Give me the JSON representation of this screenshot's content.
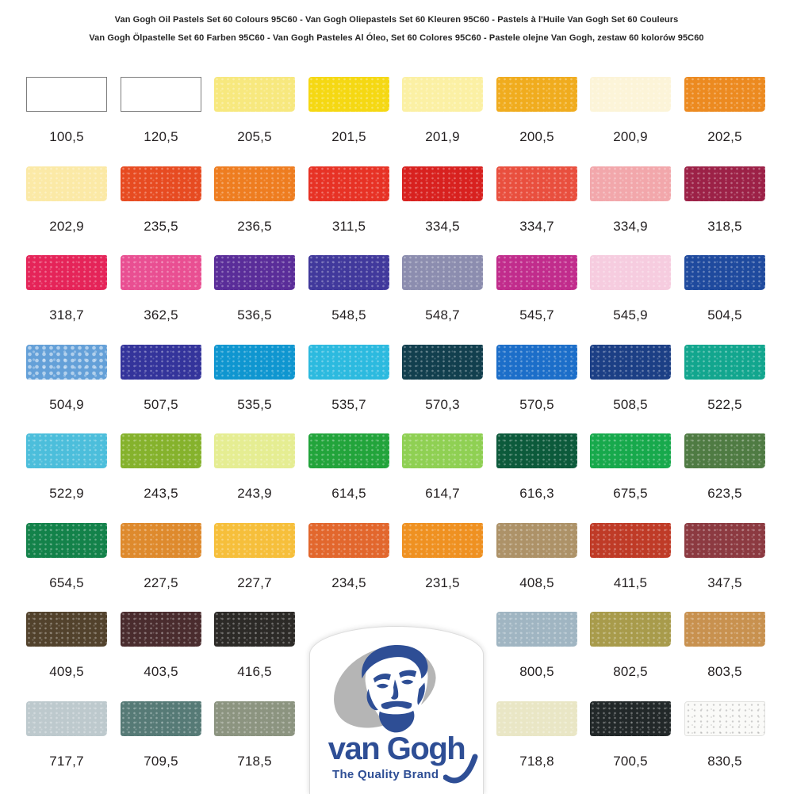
{
  "header": {
    "line1": "Van Gogh Oil Pastels Set 60 Colours 95C60 - Van Gogh Oliepastels Set 60 Kleuren 95C60 - Pastels à l'Huile Van Gogh Set 60 Couleurs",
    "line2": "Van Gogh Ölpastelle Set 60 Farben 95C60 - Van Gogh Pasteles Al Óleo, Set 60 Colores 95C60 - Pastele olejne Van Gogh, zestaw 60 kolorów 95C60"
  },
  "logo": {
    "wordmark": "van Gogh",
    "tagline": "The Quality Brand",
    "brand_blue": "#2E4E95",
    "palette_grey": "#B5B5B5"
  },
  "swatches": [
    {
      "code": "100,5",
      "color": "#FFFFFF",
      "variant": "outlined",
      "row": 0,
      "col": 0
    },
    {
      "code": "120,5",
      "color": "#FFFFFF",
      "variant": "outlined",
      "row": 0,
      "col": 1
    },
    {
      "code": "205,5",
      "color": "#F7E87E",
      "row": 0,
      "col": 2
    },
    {
      "code": "201,5",
      "color": "#F5D813",
      "row": 0,
      "col": 3
    },
    {
      "code": "201,9",
      "color": "#FBF0A4",
      "row": 0,
      "col": 4
    },
    {
      "code": "200,5",
      "color": "#F0AC1E",
      "row": 0,
      "col": 5
    },
    {
      "code": "200,9",
      "color": "#FCF4D8",
      "row": 0,
      "col": 6
    },
    {
      "code": "202,5",
      "color": "#EC8A20",
      "row": 0,
      "col": 7
    },
    {
      "code": "202,9",
      "color": "#FBE9A6",
      "row": 1,
      "col": 0
    },
    {
      "code": "235,5",
      "color": "#E74B21",
      "row": 1,
      "col": 1
    },
    {
      "code": "236,5",
      "color": "#EE7D20",
      "row": 1,
      "col": 2
    },
    {
      "code": "311,5",
      "color": "#E73225",
      "row": 1,
      "col": 3
    },
    {
      "code": "334,5",
      "color": "#D8211F",
      "row": 1,
      "col": 4
    },
    {
      "code": "334,7",
      "color": "#E94F3E",
      "row": 1,
      "col": 5
    },
    {
      "code": "334,9",
      "color": "#F2A7AB",
      "row": 1,
      "col": 6
    },
    {
      "code": "318,5",
      "color": "#9C2147",
      "row": 1,
      "col": 7
    },
    {
      "code": "318,7",
      "color": "#E52459",
      "row": 2,
      "col": 0
    },
    {
      "code": "362,5",
      "color": "#E94F92",
      "row": 2,
      "col": 1
    },
    {
      "code": "536,5",
      "color": "#5A2D99",
      "row": 2,
      "col": 2
    },
    {
      "code": "548,5",
      "color": "#41399C",
      "row": 2,
      "col": 3
    },
    {
      "code": "548,7",
      "color": "#8C8DAF",
      "row": 2,
      "col": 4
    },
    {
      "code": "545,7",
      "color": "#C12C8C",
      "row": 2,
      "col": 5
    },
    {
      "code": "545,9",
      "color": "#F6CCDF",
      "row": 2,
      "col": 6
    },
    {
      "code": "504,5",
      "color": "#1F4A9E",
      "row": 2,
      "col": 7
    },
    {
      "code": "504,9",
      "color": "#64A0D8",
      "variant": "mottled",
      "row": 3,
      "col": 0
    },
    {
      "code": "507,5",
      "color": "#34349B",
      "row": 3,
      "col": 1
    },
    {
      "code": "535,5",
      "color": "#0F96D0",
      "row": 3,
      "col": 2
    },
    {
      "code": "535,7",
      "color": "#2CBADF",
      "row": 3,
      "col": 3
    },
    {
      "code": "570,3",
      "color": "#123F4E",
      "row": 3,
      "col": 4
    },
    {
      "code": "570,5",
      "color": "#1C6EC9",
      "row": 3,
      "col": 5
    },
    {
      "code": "508,5",
      "color": "#1C3F85",
      "row": 3,
      "col": 6
    },
    {
      "code": "522,5",
      "color": "#12A68E",
      "row": 3,
      "col": 7
    },
    {
      "code": "522,9",
      "color": "#4CBEDB",
      "row": 4,
      "col": 0
    },
    {
      "code": "243,5",
      "color": "#85B22C",
      "row": 4,
      "col": 1
    },
    {
      "code": "243,9",
      "color": "#E5ED92",
      "row": 4,
      "col": 2
    },
    {
      "code": "614,5",
      "color": "#22A43B",
      "row": 4,
      "col": 3
    },
    {
      "code": "614,7",
      "color": "#8FD053",
      "row": 4,
      "col": 4
    },
    {
      "code": "616,3",
      "color": "#0C5A3B",
      "row": 4,
      "col": 5
    },
    {
      "code": "675,5",
      "color": "#17A94C",
      "row": 4,
      "col": 6
    },
    {
      "code": "623,5",
      "color": "#4F7B43",
      "row": 4,
      "col": 7
    },
    {
      "code": "654,5",
      "color": "#13824A",
      "row": 5,
      "col": 0
    },
    {
      "code": "227,5",
      "color": "#DE8A2D",
      "row": 5,
      "col": 1
    },
    {
      "code": "227,7",
      "color": "#F6BF3B",
      "row": 5,
      "col": 2
    },
    {
      "code": "234,5",
      "color": "#E2672D",
      "row": 5,
      "col": 3
    },
    {
      "code": "231,5",
      "color": "#EF9121",
      "row": 5,
      "col": 4
    },
    {
      "code": "408,5",
      "color": "#AD9268",
      "row": 5,
      "col": 5
    },
    {
      "code": "411,5",
      "color": "#BF3B27",
      "row": 5,
      "col": 6
    },
    {
      "code": "347,5",
      "color": "#8C3A41",
      "row": 5,
      "col": 7
    },
    {
      "code": "409,5",
      "color": "#52422C",
      "row": 6,
      "col": 0
    },
    {
      "code": "403,5",
      "color": "#4A2C2E",
      "row": 6,
      "col": 1
    },
    {
      "code": "416,5",
      "color": "#2C2A27",
      "row": 6,
      "col": 2
    },
    {
      "code": "800,5",
      "color": "#A0B5C2",
      "row": 6,
      "col": 5
    },
    {
      "code": "802,5",
      "color": "#A89B4B",
      "row": 6,
      "col": 6
    },
    {
      "code": "803,5",
      "color": "#C8914F",
      "row": 6,
      "col": 7
    },
    {
      "code": "717,7",
      "color": "#BDC9CD",
      "row": 7,
      "col": 0
    },
    {
      "code": "709,5",
      "color": "#567A76",
      "row": 7,
      "col": 1
    },
    {
      "code": "718,5",
      "color": "#8C9480",
      "row": 7,
      "col": 2
    },
    {
      "code": "718,8",
      "color": "#E9E6C5",
      "row": 7,
      "col": 5
    },
    {
      "code": "700,5",
      "color": "#222829",
      "row": 7,
      "col": 6
    },
    {
      "code": "830,5",
      "color": "#FAFAF8",
      "variant": "speckle-dark",
      "row": 7,
      "col": 7
    }
  ]
}
